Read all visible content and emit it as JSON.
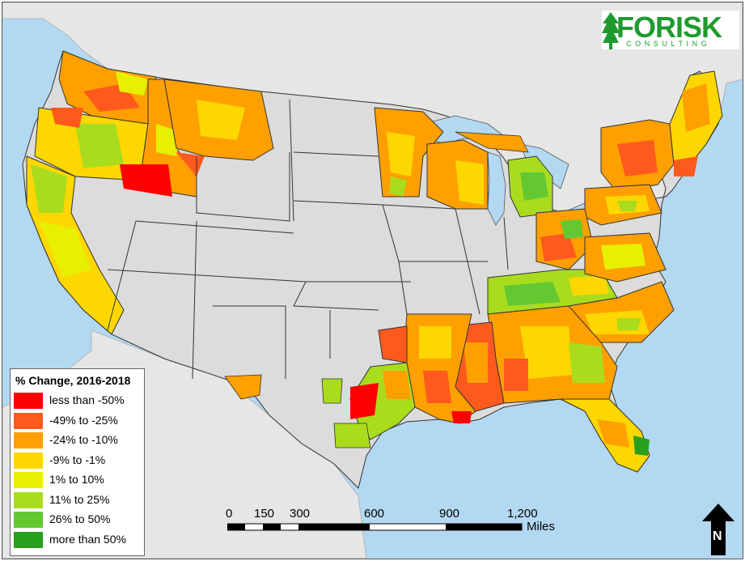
{
  "logo": {
    "name": "FORISK",
    "subtitle": "CONSULTING"
  },
  "legend": {
    "title": "% Change, 2016-2018",
    "items": [
      {
        "label": "less than -50%",
        "color": "#ff0000"
      },
      {
        "label": "-49% to -25%",
        "color": "#ff5a1e"
      },
      {
        "label": "-24% to -10%",
        "color": "#ffa000"
      },
      {
        "label": "-9% to -1%",
        "color": "#ffd700"
      },
      {
        "label": "1% to 10%",
        "color": "#e6f000"
      },
      {
        "label": "11% to 25%",
        "color": "#aadc1e"
      },
      {
        "label": "26% to 50%",
        "color": "#64c832"
      },
      {
        "label": "more than 50%",
        "color": "#28a01e"
      }
    ]
  },
  "scale_bar": {
    "ticks": [
      "0",
      "150",
      "300",
      "600",
      "900",
      "1,200"
    ],
    "unit": "Miles"
  },
  "north_arrow": {
    "label": "N"
  },
  "colors": {
    "water": "#b3d9f2",
    "neighbor_land": "#e6e6e6",
    "no_data_state": "#dcdcdc",
    "state_border": "#333333"
  }
}
